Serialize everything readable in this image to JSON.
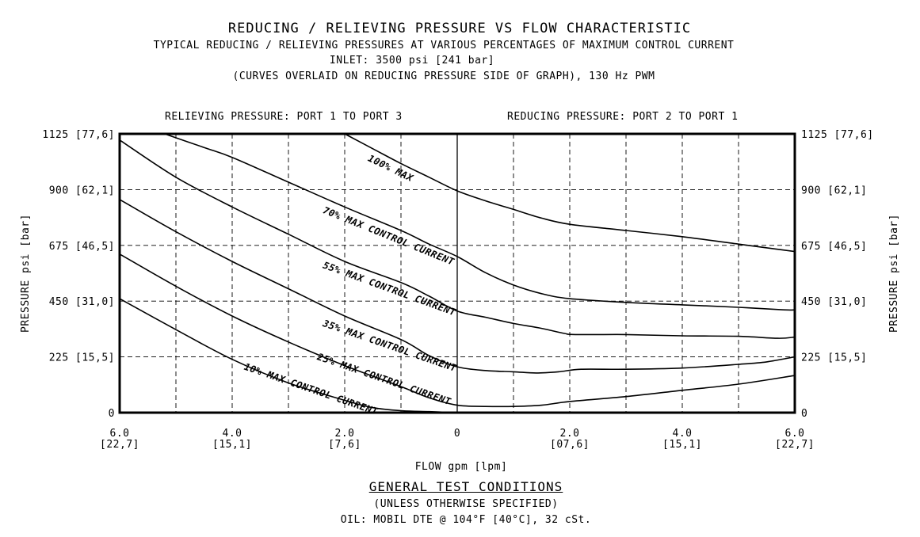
{
  "header": {
    "title": "REDUCING / RELIEVING PRESSURE VS FLOW CHARACTERISTIC",
    "subtitle1": "TYPICAL REDUCING / RELIEVING PRESSURES AT VARIOUS PERCENTAGES OF MAXIMUM CONTROL CURRENT",
    "subtitle2": "INLET: 3500 psi [241 bar]",
    "subtitle3": "(CURVES OVERLAID ON REDUCING PRESSURE SIDE OF GRAPH), 130 Hz PWM",
    "left_section": "RELIEVING PRESSURE: PORT 1 TO PORT 3",
    "right_section": "REDUCING PRESSURE: PORT 2 TO PORT 1"
  },
  "footer": {
    "title": "GENERAL TEST CONDITIONS",
    "line1": "(UNLESS OTHERWISE SPECIFIED)",
    "line2": "OIL: MOBIL DTE @ 104°F [40°C], 32 cSt."
  },
  "chart_data": {
    "type": "line",
    "xlabel": "FLOW gpm [lpm]",
    "ylabel": "PRESSURE psi [bar]",
    "xlim": [
      -6,
      6
    ],
    "ylim": [
      0,
      1125
    ],
    "grid": true,
    "x_ticks": [
      {
        "value": -6,
        "line1": "6.0",
        "line2": "[22,7]"
      },
      {
        "value": -4,
        "line1": "4.0",
        "line2": "[15,1]"
      },
      {
        "value": -2,
        "line1": "2.0",
        "line2": "[7,6]"
      },
      {
        "value": 0,
        "line1": "0",
        "line2": ""
      },
      {
        "value": 2,
        "line1": "2.0",
        "line2": "[07,6]"
      },
      {
        "value": 4,
        "line1": "4.0",
        "line2": "[15,1]"
      },
      {
        "value": 6,
        "line1": "6.0",
        "line2": "[22,7]"
      }
    ],
    "y_ticks": [
      {
        "value": 1125,
        "label": "1125 [77,6]"
      },
      {
        "value": 900,
        "label": "900 [62,1]"
      },
      {
        "value": 675,
        "label": "675 [46,5]"
      },
      {
        "value": 450,
        "label": "450 [31,0]"
      },
      {
        "value": 225,
        "label": "225 [15,5]"
      },
      {
        "value": 0,
        "label": "0"
      }
    ],
    "series": [
      {
        "name": "100% MAX",
        "label_at": [
          -1.6,
          1018
        ],
        "label_angle": 26,
        "x": [
          -2.0,
          -1.5,
          -1.0,
          -0.5,
          0.0,
          0.5,
          1.0,
          1.5,
          2.0,
          3.0,
          4.0,
          5.0,
          6.0
        ],
        "y": [
          1125,
          1065,
          1005,
          950,
          895,
          855,
          820,
          785,
          760,
          735,
          710,
          680,
          650
        ]
      },
      {
        "name": "70% MAX CONTROL CURRENT",
        "label_at": [
          -2.4,
          807
        ],
        "label_angle": 22,
        "x": [
          -5.2,
          -4.5,
          -4.0,
          -3.0,
          -2.0,
          -1.0,
          -0.5,
          0.0,
          0.5,
          1.0,
          1.5,
          2.0,
          3.0,
          4.0,
          5.0,
          5.8,
          6.0
        ],
        "y": [
          1125,
          1070,
          1030,
          930,
          830,
          735,
          680,
          630,
          565,
          515,
          480,
          460,
          445,
          435,
          425,
          415,
          415
        ]
      },
      {
        "name": "55% MAX CONTROL CURRENT",
        "label_at": [
          -2.4,
          585
        ],
        "label_angle": 20,
        "x": [
          -6.0,
          -5.0,
          -4.0,
          -3.0,
          -2.0,
          -1.0,
          -0.5,
          0.0,
          0.5,
          1.0,
          1.5,
          1.9,
          2.1,
          3.0,
          4.0,
          5.0,
          5.7,
          6.0
        ],
        "y": [
          1100,
          950,
          830,
          720,
          610,
          525,
          470,
          410,
          385,
          360,
          340,
          320,
          315,
          315,
          310,
          308,
          300,
          305
        ]
      },
      {
        "name": "35% MAX CONTROL CURRENT",
        "label_at": [
          -2.4,
          350
        ],
        "label_angle": 19,
        "x": [
          -6.0,
          -5.0,
          -4.0,
          -3.0,
          -2.0,
          -1.0,
          -0.5,
          0.0,
          0.5,
          1.0,
          1.4,
          1.8,
          2.2,
          3.0,
          4.0,
          5.0,
          5.5,
          6.0
        ],
        "y": [
          860,
          730,
          610,
          500,
          390,
          295,
          230,
          185,
          170,
          165,
          160,
          165,
          175,
          175,
          180,
          195,
          205,
          225
        ]
      },
      {
        "name": "25% MAX CONTROL CURRENT",
        "label_at": [
          -2.5,
          215
        ],
        "label_angle": 19,
        "x": [
          -6.0,
          -5.0,
          -4.0,
          -3.0,
          -2.0,
          -1.0,
          -0.5,
          0.0,
          0.5,
          1.0,
          1.5,
          2.0,
          3.0,
          4.0,
          5.0,
          6.0
        ],
        "y": [
          640,
          510,
          390,
          285,
          190,
          105,
          60,
          30,
          25,
          25,
          30,
          45,
          65,
          90,
          115,
          150
        ]
      },
      {
        "name": "10% MAX CONTROL CURRENT",
        "label_at": [
          -3.8,
          175
        ],
        "label_angle": 19,
        "x": [
          -6.0,
          -5.0,
          -4.0,
          -3.0,
          -2.0,
          -1.5,
          -1.0,
          -0.5,
          0.0
        ],
        "y": [
          460,
          335,
          215,
          120,
          50,
          20,
          8,
          4,
          0
        ]
      }
    ]
  }
}
